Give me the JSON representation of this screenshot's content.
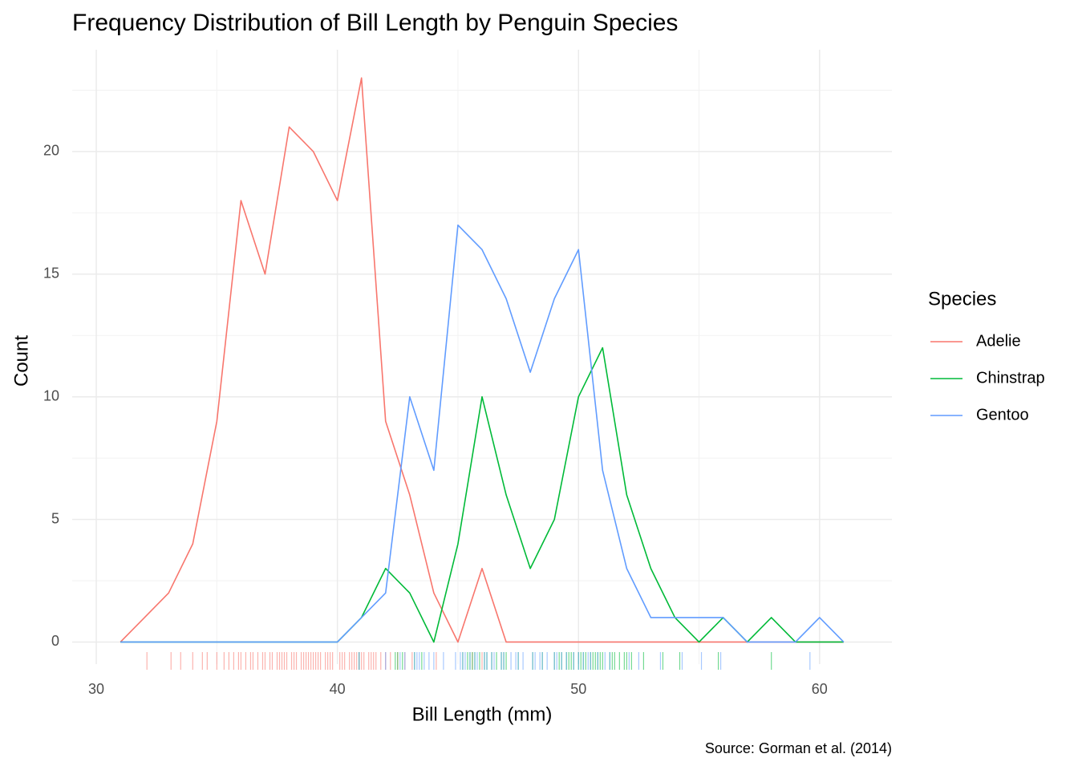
{
  "chart_data": {
    "type": "line",
    "title": "Frequency Distribution of Bill Length by Penguin Species",
    "x_label": "Bill Length (mm)",
    "y_label": "Count",
    "caption": "Source: Gorman et al. (2014)",
    "legend_title": "Species",
    "legend_position": "right",
    "grid": true,
    "xlim": [
      29,
      63
    ],
    "ylim": [
      -0.9,
      24.15
    ],
    "xticks": [
      30,
      40,
      50,
      60
    ],
    "yticks": [
      0,
      5,
      10,
      15,
      20
    ],
    "xminor": [
      35,
      45,
      55
    ],
    "yminor": [
      2.5,
      7.5,
      12.5,
      17.5,
      22.5
    ],
    "x": [
      31,
      32,
      33,
      34,
      35,
      36,
      37,
      38,
      39,
      40,
      41,
      42,
      43,
      44,
      45,
      46,
      47,
      48,
      49,
      50,
      51,
      52,
      53,
      54,
      55,
      56,
      57,
      58,
      59,
      60,
      61
    ],
    "series": [
      {
        "name": "Adelie",
        "color": "#F8766D",
        "values": [
          0,
          1,
          2,
          4,
          9,
          18,
          15,
          21,
          20,
          18,
          23,
          9,
          6,
          2,
          0,
          3,
          0,
          0,
          0,
          0,
          0,
          0,
          0,
          0,
          0,
          0,
          0,
          0,
          0,
          0,
          0
        ],
        "rug": [
          32.1,
          33.1,
          33.5,
          34.0,
          34.4,
          34.6,
          35.0,
          35.3,
          35.5,
          35.7,
          35.9,
          36.0,
          36.2,
          36.4,
          36.5,
          36.7,
          36.9,
          37.0,
          37.2,
          37.3,
          37.5,
          37.6,
          37.7,
          37.8,
          37.9,
          38.1,
          38.2,
          38.3,
          38.5,
          38.6,
          38.7,
          38.8,
          38.9,
          39.0,
          39.1,
          39.2,
          39.3,
          39.5,
          39.6,
          39.7,
          39.8,
          40.1,
          40.2,
          40.3,
          40.5,
          40.6,
          40.7,
          40.8,
          40.9,
          41.0,
          41.1,
          41.3,
          41.4,
          41.5,
          41.6,
          41.8,
          42.0,
          42.2,
          42.5,
          42.8,
          43.1,
          44.1,
          45.6,
          46.0
        ]
      },
      {
        "name": "Chinstrap",
        "color": "#00BA38",
        "values": [
          0,
          0,
          0,
          0,
          0,
          0,
          0,
          0,
          0,
          0,
          1,
          3,
          2,
          0,
          4,
          10,
          6,
          3,
          5,
          10,
          12,
          6,
          3,
          1,
          0,
          1,
          0,
          1,
          0,
          0,
          0
        ],
        "rug": [
          40.9,
          42.4,
          42.5,
          42.7,
          43.2,
          43.5,
          45.2,
          45.4,
          45.5,
          45.6,
          45.7,
          45.9,
          46.1,
          46.2,
          46.4,
          46.6,
          46.8,
          46.9,
          47.0,
          47.5,
          48.1,
          48.5,
          49.0,
          49.2,
          49.3,
          49.5,
          49.6,
          49.7,
          49.8,
          50.0,
          50.1,
          50.2,
          50.3,
          50.5,
          50.6,
          50.7,
          50.8,
          50.9,
          51.0,
          51.3,
          51.4,
          51.5,
          51.7,
          51.9,
          52.0,
          52.2,
          52.7,
          53.5,
          54.2,
          55.8,
          58.0
        ]
      },
      {
        "name": "Gentoo",
        "color": "#619CFF",
        "values": [
          0,
          0,
          0,
          0,
          0,
          0,
          0,
          0,
          0,
          0,
          1,
          2,
          10,
          7,
          17,
          16,
          14,
          11,
          14,
          16,
          7,
          3,
          1,
          1,
          1,
          1,
          0,
          0,
          0,
          1,
          0
        ],
        "rug": [
          40.9,
          42.0,
          42.6,
          42.8,
          43.2,
          43.3,
          43.4,
          43.6,
          43.8,
          44.0,
          44.4,
          44.9,
          45.1,
          45.2,
          45.3,
          45.5,
          45.7,
          45.8,
          46.1,
          46.2,
          46.4,
          46.5,
          46.8,
          46.9,
          47.2,
          47.4,
          47.5,
          47.7,
          48.1,
          48.2,
          48.4,
          48.5,
          48.7,
          49.0,
          49.1,
          49.3,
          49.5,
          49.8,
          50.0,
          50.2,
          50.4,
          50.5,
          50.8,
          51.1,
          51.3,
          52.1,
          52.5,
          53.4,
          54.3,
          55.1,
          55.9,
          59.6
        ]
      }
    ]
  }
}
